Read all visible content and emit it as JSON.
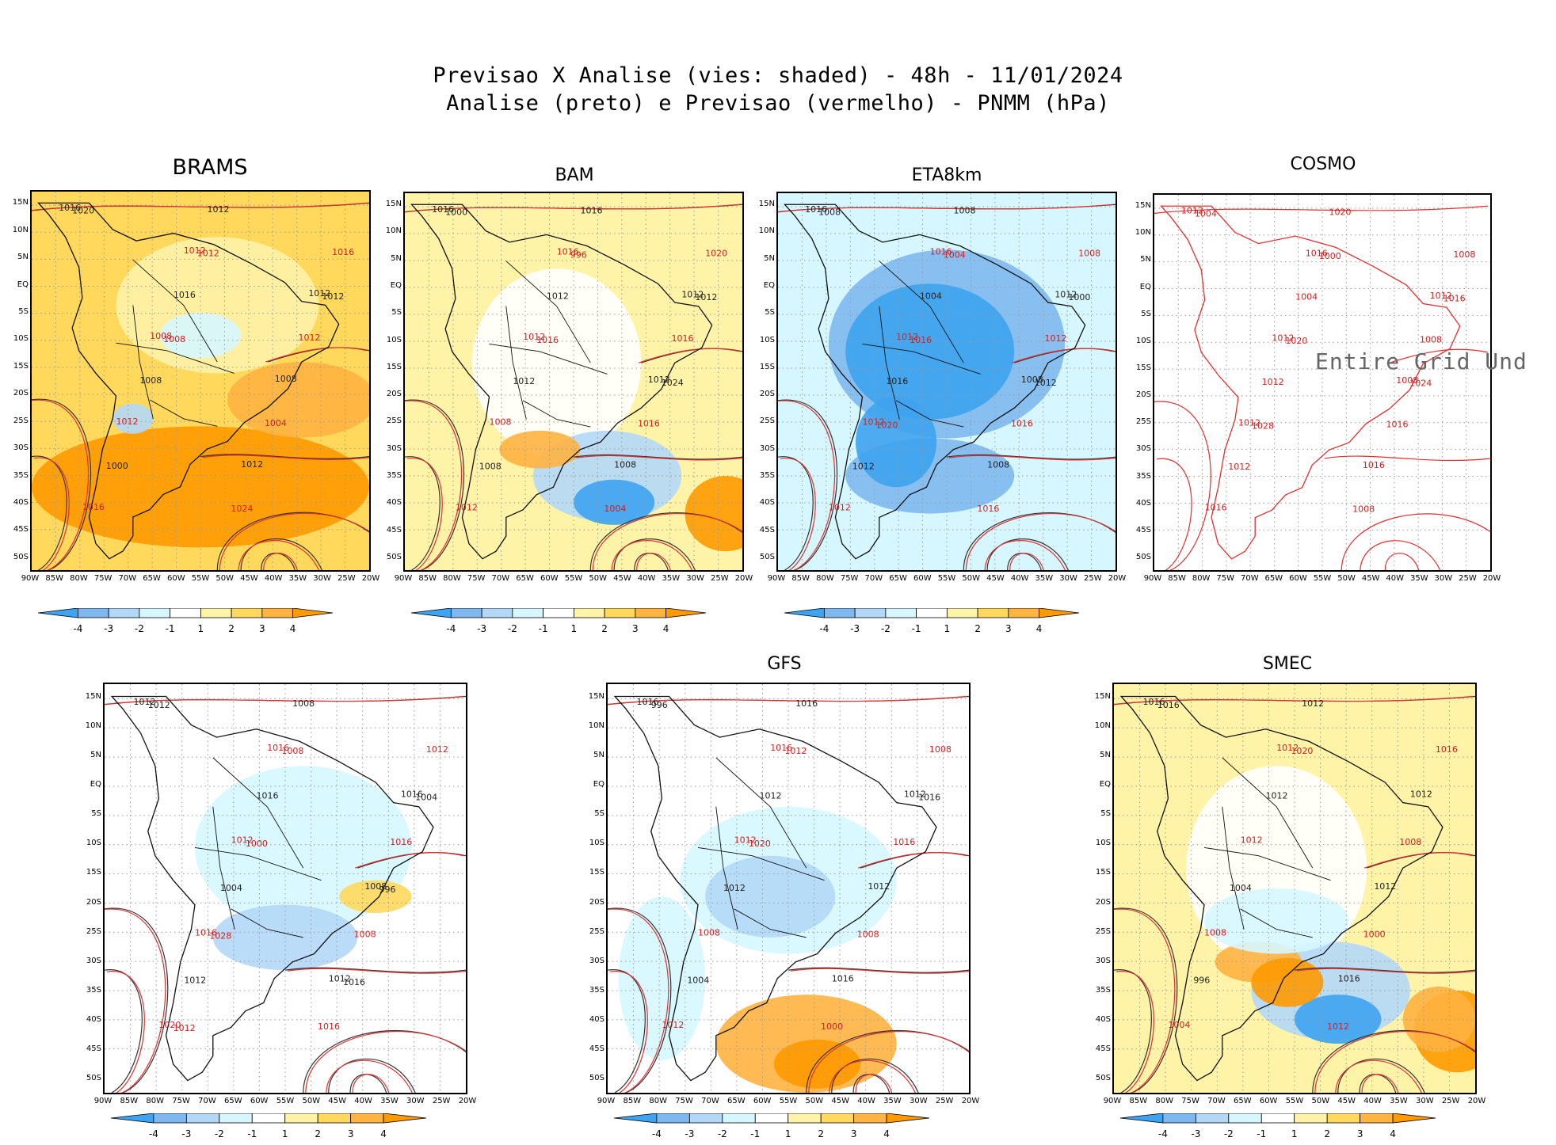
{
  "title": {
    "line1": "Previsao X Analise (vies: shaded) - 48h - 11/01/2024",
    "line2": "Analise (preto) e Previsao (vermelho) - PNMM (hPa)"
  },
  "panels": [
    {
      "name": "BRAMS",
      "title": "BRAMS",
      "bias": "warm"
    },
    {
      "name": "BAM",
      "title": "BAM",
      "bias": "mixed"
    },
    {
      "name": "ETA8km",
      "title": "ETA8km",
      "bias": "cold"
    },
    {
      "name": "COSMO",
      "title": "COSMO",
      "bias": "none",
      "overlay": "Entire Grid Und"
    },
    {
      "name": "panel5",
      "title": "",
      "bias": "slight-cold"
    },
    {
      "name": "GFS",
      "title": "GFS",
      "bias": "mixed-cold"
    },
    {
      "name": "SMEC",
      "title": "SMEC",
      "bias": "mixed"
    }
  ],
  "axes": {
    "lat_ticks": [
      "15N",
      "10N",
      "5N",
      "EQ",
      "5S",
      "10S",
      "15S",
      "20S",
      "25S",
      "30S",
      "35S",
      "40S",
      "45S",
      "50S"
    ],
    "lon_ticks": [
      "90W",
      "85W",
      "80W",
      "75W",
      "70W",
      "65W",
      "60W",
      "55W",
      "50W",
      "45W",
      "40W",
      "35W",
      "30W",
      "25W",
      "20W"
    ]
  },
  "colorbar": {
    "labels": [
      "-4",
      "-3",
      "-2",
      "-1",
      "1",
      "2",
      "3",
      "4"
    ],
    "colors": [
      "#3ea3f0",
      "#7fb8f0",
      "#b3d8f7",
      "#d6f7ff",
      "#ffffff",
      "#fff3a8",
      "#ffd85c",
      "#ffb340",
      "#ff9a00"
    ]
  },
  "isobar_labels": {
    "BRAMS": [
      "1016",
      "1012",
      "1012",
      "1008",
      "1008",
      "1012",
      "1012",
      "1016",
      "1012",
      "1016",
      "1016",
      "1012",
      "1008",
      "1004",
      "1000",
      "1024",
      "1020",
      "1012",
      "1012",
      "1008"
    ],
    "BAM": [
      "1016",
      "1016",
      "1012",
      "1012",
      "1012",
      "1008",
      "1008",
      "1012",
      "1016",
      "1020",
      "1012",
      "1016",
      "1012",
      "1016",
      "1008",
      "1004",
      "1000",
      "996",
      "1012",
      "1016",
      "1024"
    ],
    "ETA8km": [
      "1016",
      "1016",
      "1012",
      "1012",
      "1008",
      "1012",
      "1008",
      "1012",
      "1008",
      "1008",
      "1004",
      "1012",
      "1016",
      "1016",
      "1012",
      "1016",
      "1008",
      "1004",
      "1000",
      "1016",
      "1012",
      "1020"
    ],
    "COSMO": [
      "1012",
      "1016",
      "1012",
      "1012",
      "1008",
      "1012",
      "1016",
      "1016",
      "1020",
      "1008",
      "1004",
      "1008",
      "1012",
      "1016",
      "1012",
      "1008",
      "1004",
      "1000",
      "1016",
      "1020",
      "1024",
      "1028"
    ],
    "panel5": [
      "1012",
      "1016",
      "1016",
      "1012",
      "1008",
      "1016",
      "1012",
      "1020",
      "1008",
      "1012",
      "1016",
      "1016",
      "1004",
      "1008",
      "1012",
      "1016",
      "1012",
      "1008",
      "1004",
      "1000",
      "996",
      "1028",
      "1016",
      "1012"
    ],
    "GFS": [
      "1016",
      "1016",
      "1012",
      "1012",
      "1012",
      "1008",
      "1016",
      "1012",
      "1016",
      "1008",
      "1012",
      "1016",
      "1012",
      "1008",
      "1004",
      "1000",
      "996",
      "1012",
      "1016",
      "1020"
    ],
    "SMEC": [
      "1016",
      "1012",
      "1012",
      "1012",
      "1012",
      "1008",
      "1016",
      "1004",
      "1012",
      "1016",
      "1012",
      "1008",
      "1004",
      "1000",
      "996",
      "1012",
      "1016",
      "1020"
    ]
  }
}
